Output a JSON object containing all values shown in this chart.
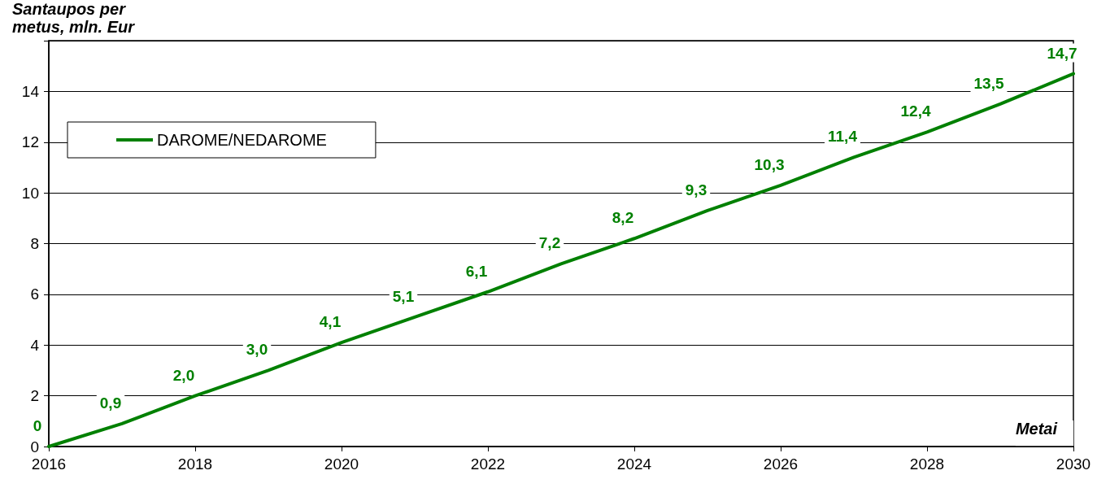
{
  "chart_data": {
    "type": "line",
    "xlabel": "Metai",
    "ylabel": "Santaupos per\nmetus, mln. Eur",
    "x": [
      2016,
      2017,
      2018,
      2019,
      2020,
      2021,
      2022,
      2023,
      2024,
      2025,
      2026,
      2027,
      2028,
      2029,
      2030
    ],
    "series": [
      {
        "name": "DAROME/NEDAROME",
        "color": "#008000",
        "values": [
          0,
          0.9,
          2.0,
          3.0,
          4.1,
          5.1,
          6.1,
          7.2,
          8.2,
          9.3,
          10.3,
          11.4,
          12.4,
          13.5,
          14.7
        ],
        "value_labels": [
          "0",
          "0,9",
          "2,0",
          "3,0",
          "4,1",
          "5,1",
          "6,1",
          "7,2",
          "8,2",
          "9,3",
          "10,3",
          "11,4",
          "12,4",
          "13,5",
          "14,7"
        ]
      }
    ],
    "xlim": [
      2016,
      2030
    ],
    "xticks": [
      2016,
      2018,
      2020,
      2022,
      2024,
      2026,
      2028,
      2030
    ],
    "ylim": [
      0,
      16
    ],
    "yticks": [
      0,
      2,
      4,
      6,
      8,
      10,
      12,
      14,
      {
        "value": 16,
        "label": null
      }
    ],
    "grid": "y",
    "legend": "top left",
    "marker": "none",
    "line_style": "solid"
  }
}
